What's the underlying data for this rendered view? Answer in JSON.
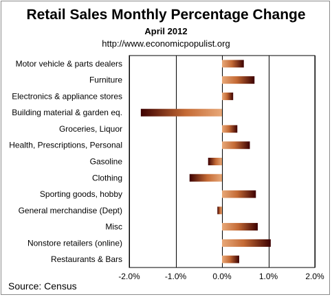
{
  "chart_data": {
    "type": "bar",
    "orientation": "horizontal",
    "title": "Retail Sales Monthly  Percentage Change",
    "subtitle": "April 2012",
    "url": "http://www.economicpopulist.org",
    "source": "Source:  Census",
    "categories": [
      "Motor vehicle & parts dealers",
      "Furniture",
      "Electronics & appliance stores",
      "Building material & garden eq.",
      "Groceries, Liquor",
      "Health, Prescriptions, Personal",
      "Gasoline",
      "Clothing",
      "Sporting goods, hobby",
      "General merchandise (Dept)",
      "Misc",
      "Nonstore retailers (online)",
      "Restaurants & Bars"
    ],
    "values": [
      0.47,
      0.7,
      0.24,
      -1.75,
      0.33,
      0.6,
      -0.3,
      -0.7,
      0.73,
      -0.1,
      0.77,
      1.05,
      0.37
    ],
    "xlim": [
      -2.0,
      2.0
    ],
    "xticks": [
      "-2.0%",
      "-1.0%",
      "0.0%",
      "1.0%",
      "2.0%"
    ],
    "xtick_values": [
      -2.0,
      -1.0,
      0.0,
      1.0,
      2.0
    ],
    "grid": "vertical",
    "colors": {
      "bar_light": "#e0a070",
      "bar_dark": "#3c0000",
      "grid": "#000000",
      "frame": "#8a8a8a"
    }
  }
}
